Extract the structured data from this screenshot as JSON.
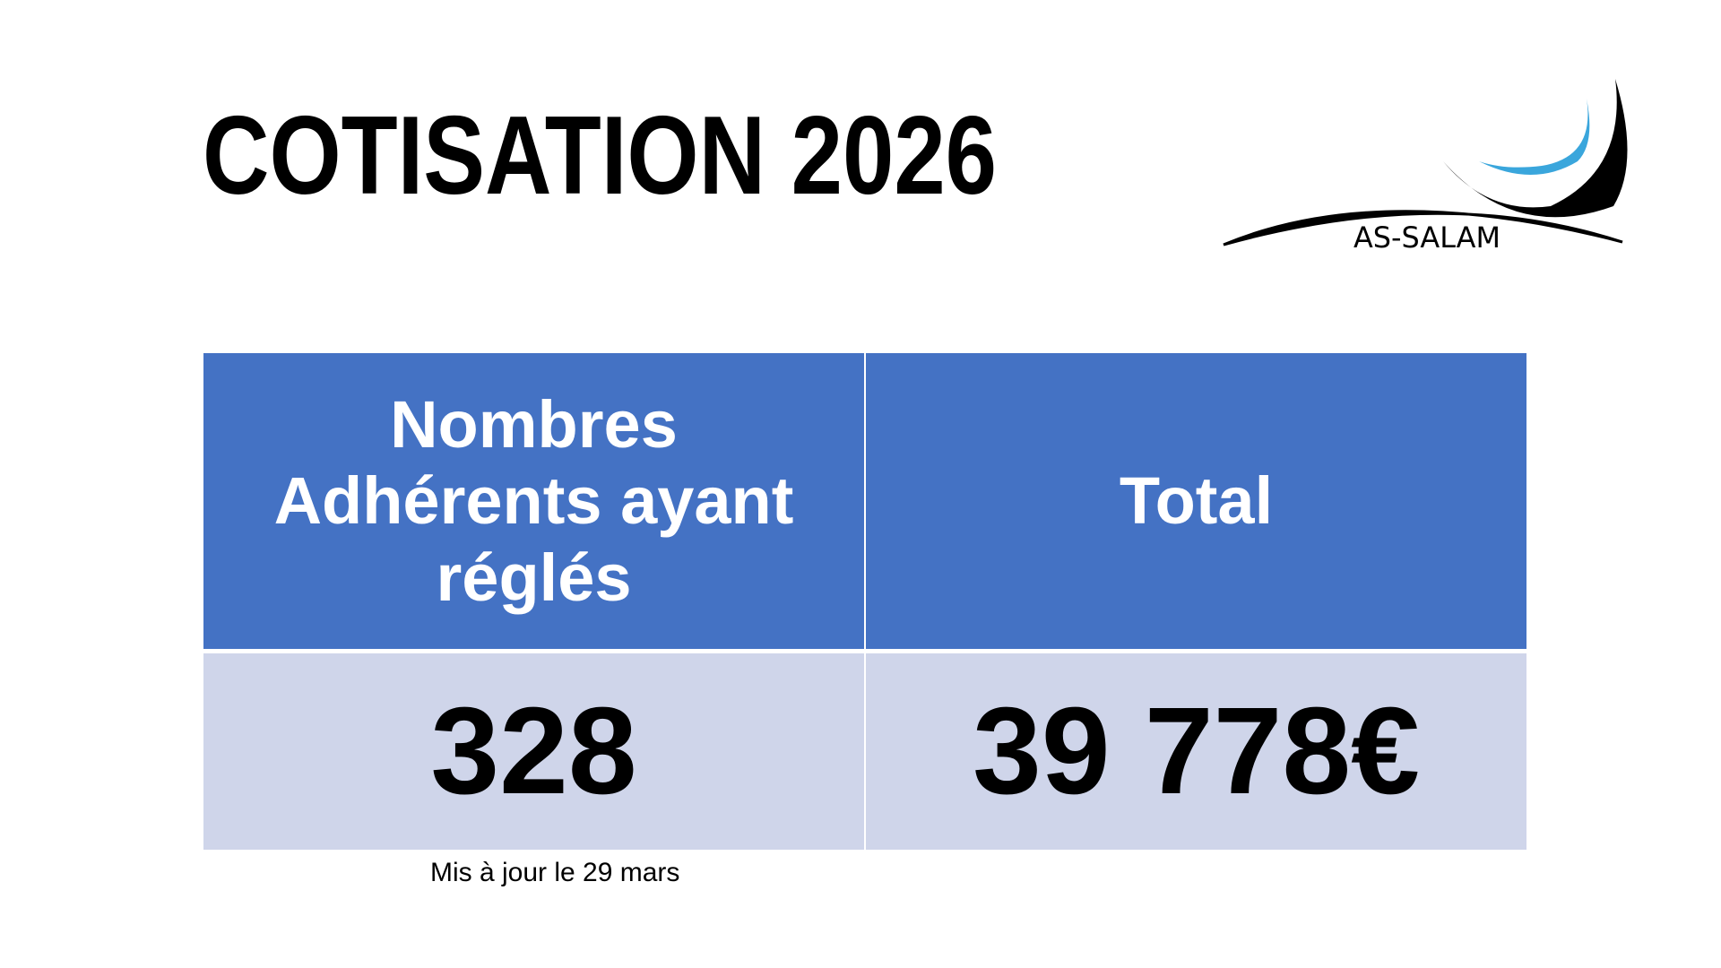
{
  "header": {
    "title": "COTISATION 2026",
    "logo_text": "AS-SALAM"
  },
  "table": {
    "columns": [
      "Nombres Adhérents ayant réglés",
      "Total"
    ],
    "rows": [
      [
        "328",
        "39 778€"
      ]
    ]
  },
  "note": "Mis à jour le 29 mars"
}
